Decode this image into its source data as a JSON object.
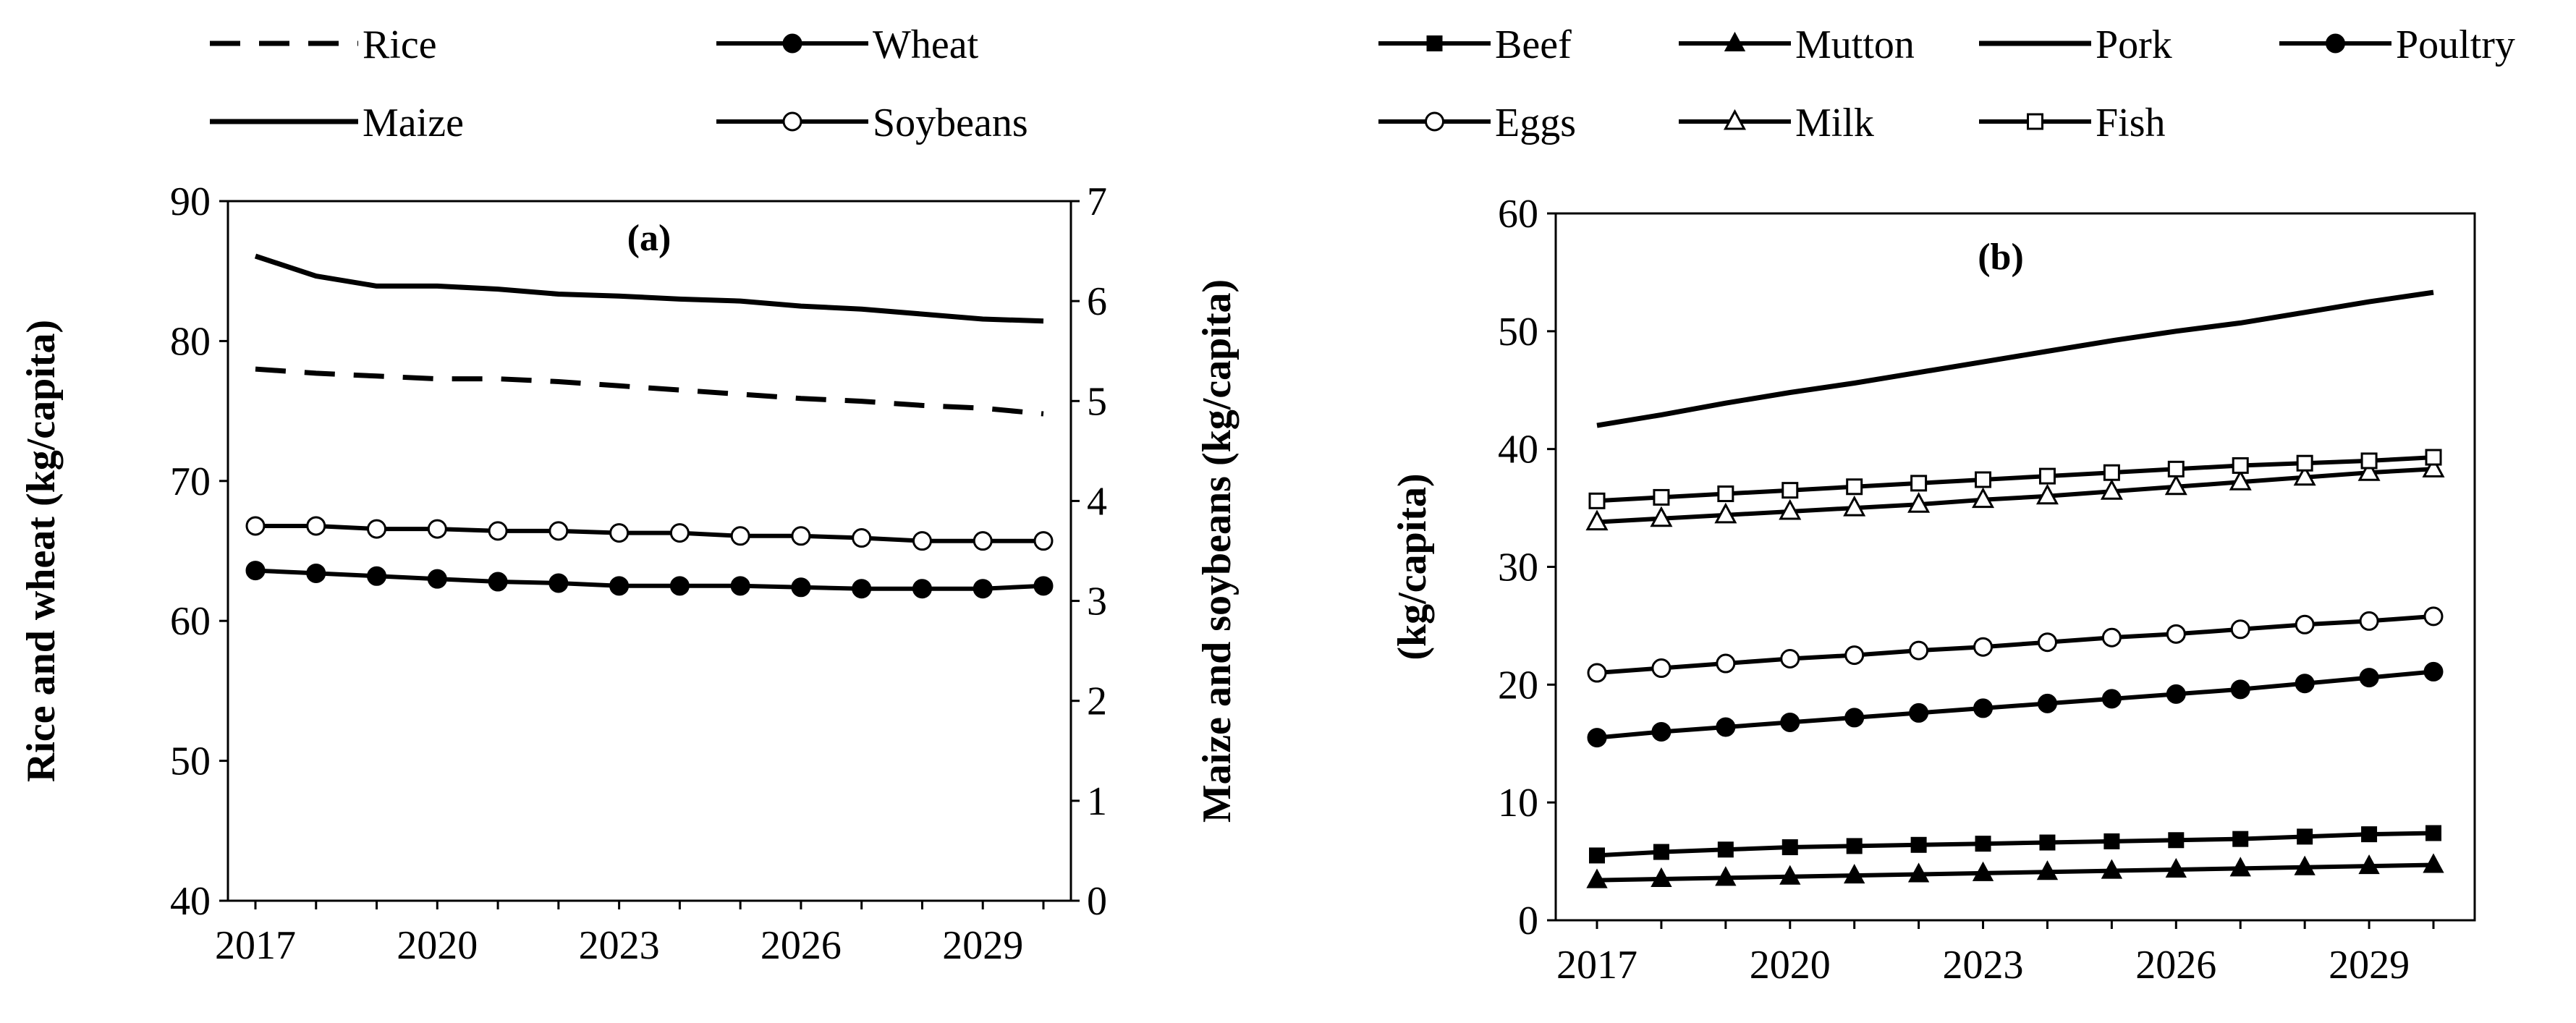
{
  "chart_data": [
    {
      "id": "a",
      "type": "line",
      "panel_label": "(a)",
      "x": [
        2017,
        2018,
        2019,
        2020,
        2021,
        2022,
        2023,
        2024,
        2025,
        2026,
        2027,
        2028,
        2029,
        2030
      ],
      "xticks": [
        "2017",
        "2020",
        "2023",
        "2026",
        "2029"
      ],
      "ylabel": "Rice and wheat (kg/capita)",
      "ylim": [
        40,
        90
      ],
      "yticks": [
        "40",
        "50",
        "60",
        "70",
        "80",
        "90"
      ],
      "y2label": "Maize and soybeans (kg/capita)",
      "y2lim": [
        0,
        7
      ],
      "y2ticks": [
        "0",
        "1",
        "2",
        "3",
        "4",
        "5",
        "6",
        "7"
      ],
      "grid": false,
      "legend_position": "top",
      "series": [
        {
          "name": "Rice",
          "axis": "left",
          "style": "dashed",
          "marker": "none",
          "values": [
            78.0,
            77.7,
            77.5,
            77.3,
            77.3,
            77.1,
            76.8,
            76.5,
            76.2,
            75.9,
            75.7,
            75.4,
            75.2,
            74.8
          ]
        },
        {
          "name": "Wheat",
          "axis": "left",
          "style": "solid",
          "marker": "filled-circle",
          "values": [
            63.6,
            63.4,
            63.2,
            63.0,
            62.8,
            62.7,
            62.5,
            62.5,
            62.5,
            62.4,
            62.3,
            62.3,
            62.3,
            62.5
          ]
        },
        {
          "name": "Maize",
          "axis": "right",
          "style": "solid",
          "marker": "none",
          "values": [
            6.45,
            6.25,
            6.15,
            6.15,
            6.12,
            6.07,
            6.05,
            6.02,
            6.0,
            5.95,
            5.92,
            5.87,
            5.82,
            5.8
          ]
        },
        {
          "name": "Soybeans",
          "axis": "right",
          "style": "solid",
          "marker": "open-circle",
          "values": [
            3.75,
            3.75,
            3.72,
            3.72,
            3.7,
            3.7,
            3.68,
            3.68,
            3.65,
            3.65,
            3.63,
            3.6,
            3.6,
            3.6
          ]
        }
      ]
    },
    {
      "id": "b",
      "type": "line",
      "panel_label": "(b)",
      "x": [
        2017,
        2018,
        2019,
        2020,
        2021,
        2022,
        2023,
        2024,
        2025,
        2026,
        2027,
        2028,
        2029,
        2030
      ],
      "xticks": [
        "2017",
        "2020",
        "2023",
        "2026",
        "2029"
      ],
      "ylabel": "(kg/capita)",
      "ylim": [
        0,
        60
      ],
      "yticks": [
        "0",
        "10",
        "20",
        "30",
        "40",
        "50",
        "60"
      ],
      "grid": false,
      "legend_position": "top",
      "series": [
        {
          "name": "Beef",
          "style": "solid",
          "marker": "filled-square",
          "values": [
            5.5,
            5.8,
            6.0,
            6.2,
            6.3,
            6.4,
            6.5,
            6.6,
            6.7,
            6.8,
            6.9,
            7.1,
            7.3,
            7.4
          ]
        },
        {
          "name": "Mutton",
          "style": "solid",
          "marker": "filled-triangle",
          "values": [
            3.4,
            3.5,
            3.6,
            3.7,
            3.8,
            3.9,
            4.0,
            4.1,
            4.2,
            4.3,
            4.4,
            4.5,
            4.6,
            4.7
          ]
        },
        {
          "name": "Pork",
          "style": "solid",
          "marker": "none",
          "values": [
            42.0,
            42.9,
            43.9,
            44.8,
            45.6,
            46.5,
            47.4,
            48.3,
            49.2,
            50.0,
            50.7,
            51.6,
            52.5,
            53.3
          ]
        },
        {
          "name": "Poultry",
          "style": "solid",
          "marker": "filled-circle",
          "values": [
            15.5,
            16.0,
            16.4,
            16.8,
            17.2,
            17.6,
            18.0,
            18.4,
            18.8,
            19.2,
            19.6,
            20.1,
            20.6,
            21.1
          ]
        },
        {
          "name": "Eggs",
          "style": "solid",
          "marker": "open-circle",
          "values": [
            21.0,
            21.4,
            21.8,
            22.2,
            22.5,
            22.9,
            23.2,
            23.6,
            24.0,
            24.3,
            24.7,
            25.1,
            25.4,
            25.8
          ]
        },
        {
          "name": "Milk",
          "style": "solid",
          "marker": "open-triangle",
          "values": [
            33.8,
            34.1,
            34.4,
            34.7,
            35.0,
            35.3,
            35.7,
            36.0,
            36.4,
            36.8,
            37.2,
            37.6,
            38.0,
            38.3
          ]
        },
        {
          "name": "Fish",
          "style": "solid",
          "marker": "open-square",
          "values": [
            35.6,
            35.9,
            36.2,
            36.5,
            36.8,
            37.1,
            37.4,
            37.7,
            38.0,
            38.3,
            38.6,
            38.8,
            39.0,
            39.3
          ]
        }
      ]
    }
  ]
}
